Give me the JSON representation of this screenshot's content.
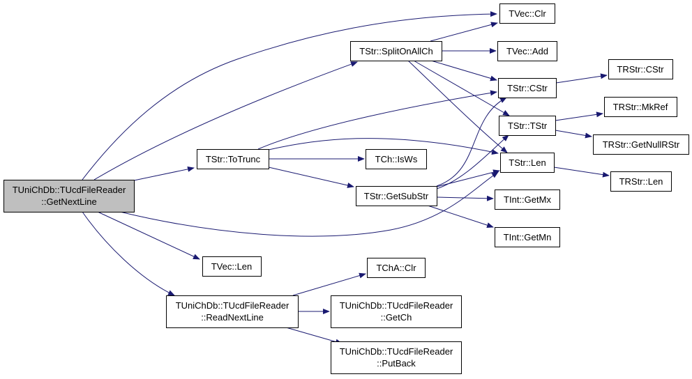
{
  "graph": {
    "edge_color": "#191970",
    "root_fill": "#bfbfbf",
    "nodes": {
      "getnextline": [
        "TUniChDb::TUcdFileReader",
        "::GetNextLine"
      ],
      "totrunc": "TStr::ToTrunc",
      "splitonallch": "TStr::SplitOnAllCh",
      "tvec_clr": "TVec::Clr",
      "tvec_add": "TVec::Add",
      "tstr_cstr": "TStr::CStr",
      "trstr_cstr": "TRStr::CStr",
      "trstr_mkref": "TRStr::MkRef",
      "tstr_tstr": "TStr::TStr",
      "trstr_getnullrstr": "TRStr::GetNullRStr",
      "tstr_len": "TStr::Len",
      "trstr_len": "TRStr::Len",
      "tch_isws": "TCh::IsWs",
      "getsubstr": "TStr::GetSubStr",
      "tint_getmx": "TInt::GetMx",
      "tint_getmn": "TInt::GetMn",
      "tvec_len": "TVec::Len",
      "readnextline": [
        "TUniChDb::TUcdFileReader",
        "::ReadNextLine"
      ],
      "tcha_clr": "TChA::Clr",
      "getch": [
        "TUniChDb::TUcdFileReader",
        "::GetCh"
      ],
      "putback": [
        "TUniChDb::TUcdFileReader",
        "::PutBack"
      ]
    },
    "edges": [
      [
        "getnextline",
        "tvec_clr"
      ],
      [
        "getnextline",
        "splitonallch"
      ],
      [
        "getnextline",
        "totrunc"
      ],
      [
        "getnextline",
        "tstr_len"
      ],
      [
        "getnextline",
        "tvec_len"
      ],
      [
        "getnextline",
        "readnextline"
      ],
      [
        "totrunc",
        "tstr_cstr"
      ],
      [
        "totrunc",
        "tstr_len"
      ],
      [
        "totrunc",
        "tch_isws"
      ],
      [
        "totrunc",
        "getsubstr"
      ],
      [
        "splitonallch",
        "tvec_clr"
      ],
      [
        "splitonallch",
        "tvec_add"
      ],
      [
        "splitonallch",
        "tstr_cstr"
      ],
      [
        "splitonallch",
        "tstr_tstr"
      ],
      [
        "splitonallch",
        "tstr_len"
      ],
      [
        "getsubstr",
        "tstr_cstr"
      ],
      [
        "getsubstr",
        "tstr_tstr"
      ],
      [
        "getsubstr",
        "tstr_len"
      ],
      [
        "getsubstr",
        "tint_getmx"
      ],
      [
        "getsubstr",
        "tint_getmn"
      ],
      [
        "tstr_cstr",
        "trstr_cstr"
      ],
      [
        "tstr_tstr",
        "trstr_mkref"
      ],
      [
        "tstr_tstr",
        "trstr_getnullrstr"
      ],
      [
        "tstr_len",
        "trstr_len"
      ],
      [
        "readnextline",
        "tcha_clr"
      ],
      [
        "readnextline",
        "getch"
      ],
      [
        "readnextline",
        "putback"
      ]
    ]
  }
}
